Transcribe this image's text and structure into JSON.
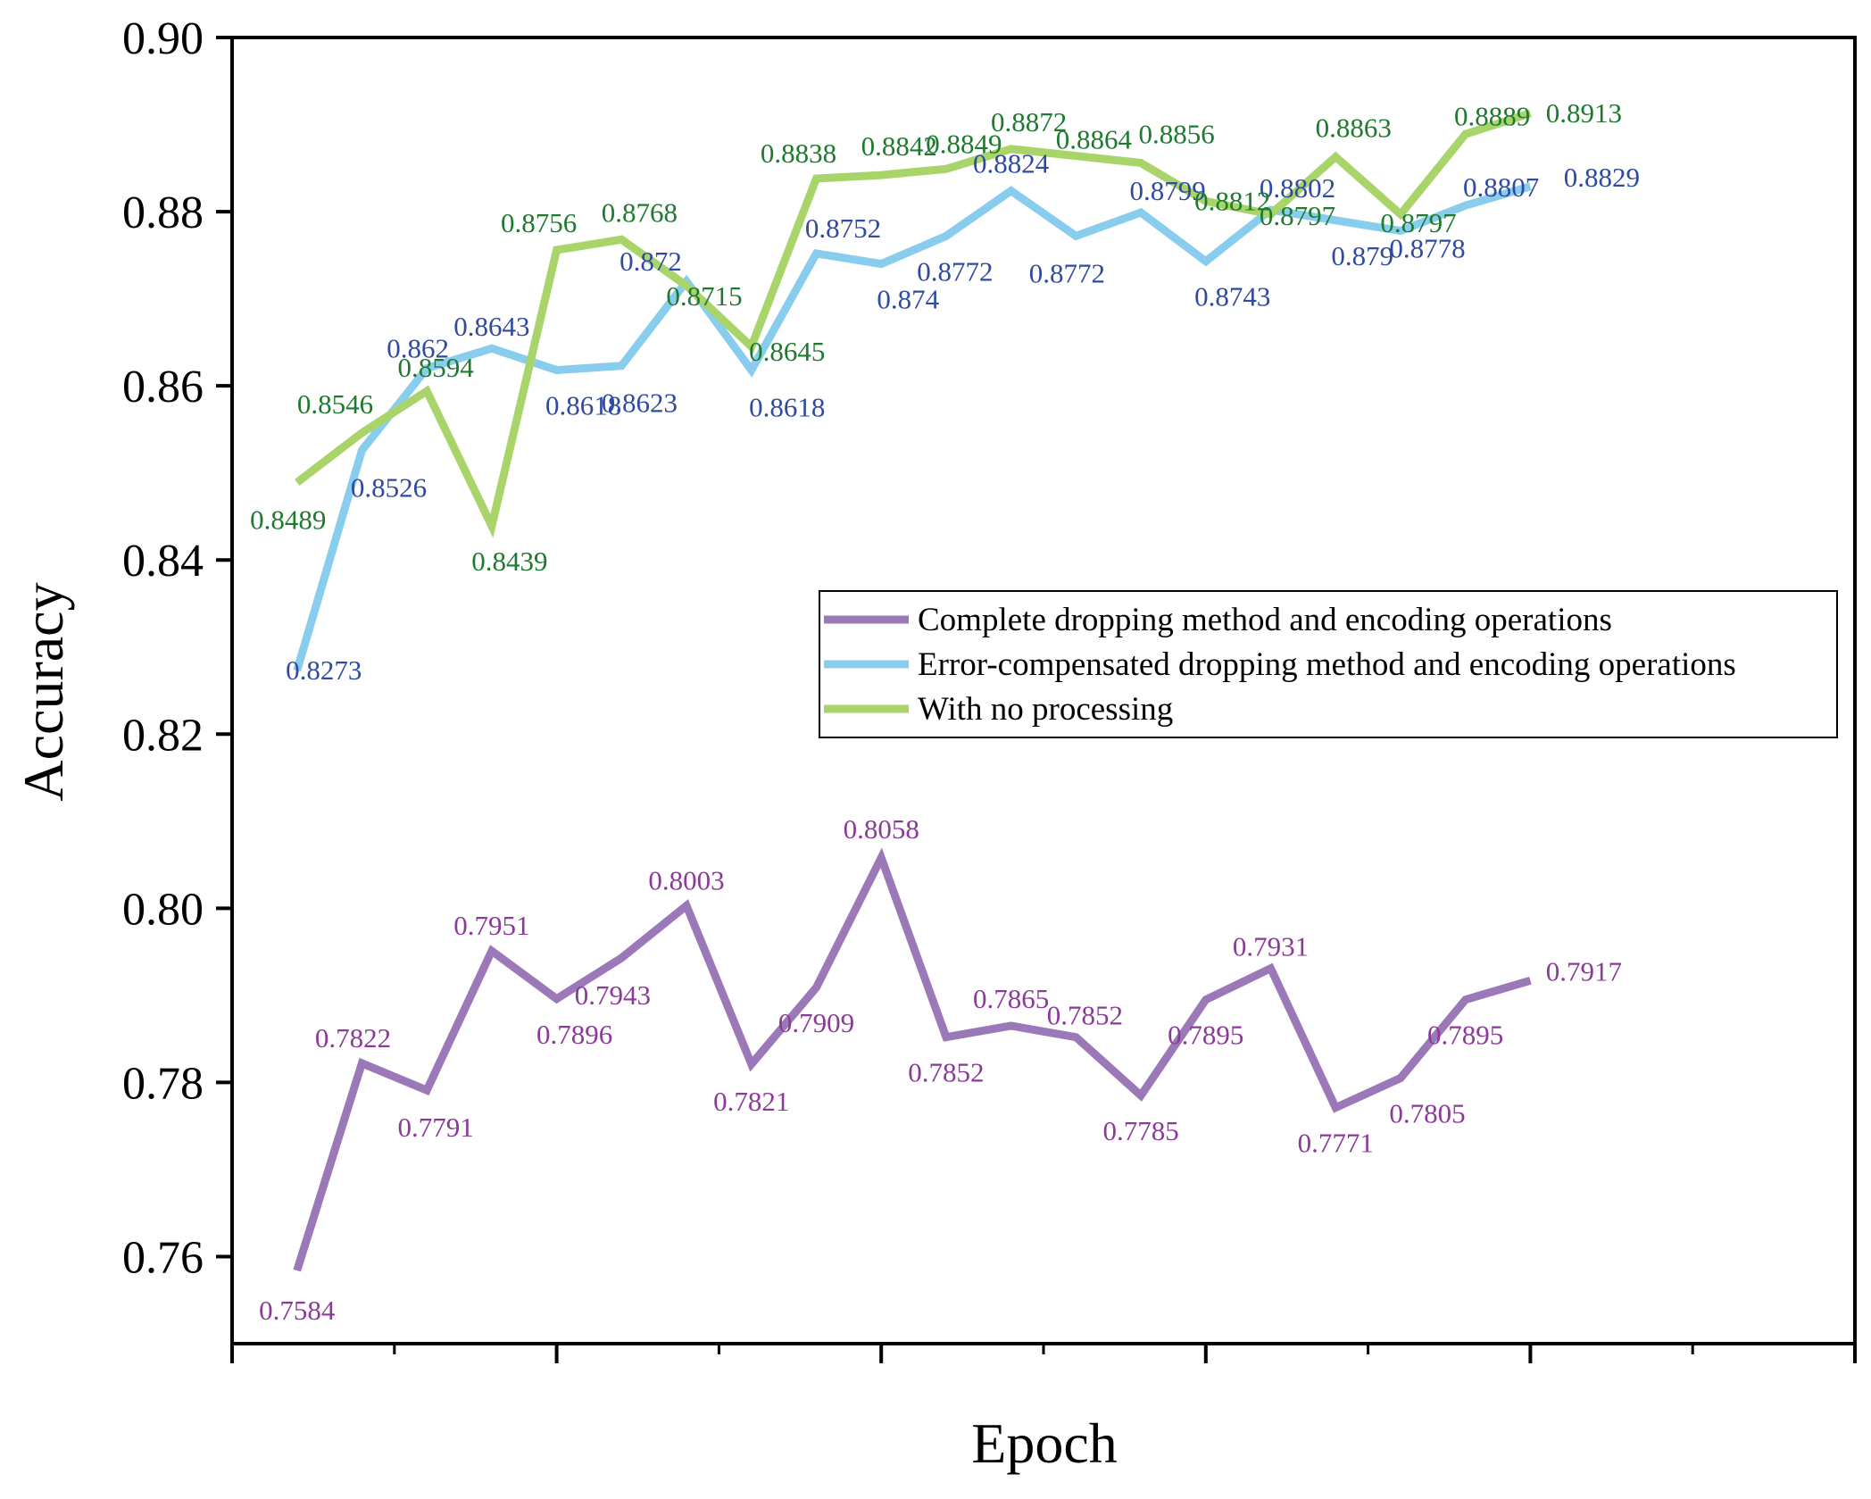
{
  "chart_data": {
    "type": "line",
    "title": "",
    "xlabel": "Epoch",
    "ylabel": "Accuracy",
    "ylim": [
      0.75,
      0.9
    ],
    "xlim": [
      0,
      25
    ],
    "yticks": [
      "0.76",
      "0.78",
      "0.80",
      "0.82",
      "0.84",
      "0.86",
      "0.88",
      "0.90"
    ],
    "ytick_values": [
      0.76,
      0.78,
      0.8,
      0.82,
      0.84,
      0.86,
      0.88,
      0.9
    ],
    "x": [
      1,
      2,
      3,
      4,
      5,
      6,
      7,
      8,
      9,
      10,
      11,
      12,
      13,
      14,
      15,
      16,
      17,
      18,
      19,
      20
    ],
    "legend_position": "center-right",
    "series": [
      {
        "name": "Complete dropping method and encoding operations",
        "color": "#9b78b8",
        "label_color": "#8b3a9a",
        "values": [
          0.7584,
          0.7822,
          0.7791,
          0.7951,
          0.7896,
          0.7943,
          0.8003,
          0.7821,
          0.7909,
          0.8058,
          0.7852,
          0.7865,
          0.7852,
          0.7785,
          0.7895,
          0.7931,
          0.7771,
          0.7805,
          0.7895,
          0.7917
        ],
        "labels": [
          "0.7584",
          "0.7822",
          "0.7791",
          "0.7951",
          "0.7896",
          "0.7943",
          "0.8003",
          "0.7821",
          "0.7909",
          "0.8058",
          "0.7852",
          "0.7865",
          "0.7852",
          "0.7785",
          "0.7895",
          "0.7931",
          "0.7771",
          "0.7805",
          "0.7895",
          "0.7917"
        ]
      },
      {
        "name": "Error-compensated dropping method and encoding operations",
        "color": "#88cdee",
        "label_color": "#2f4aa0",
        "values": [
          0.8273,
          0.8526,
          0.862,
          0.8643,
          0.8618,
          0.8623,
          0.872,
          0.8618,
          0.8752,
          0.874,
          0.8772,
          0.8824,
          0.8772,
          0.8799,
          0.8743,
          0.8802,
          0.879,
          0.8778,
          0.8807,
          0.8829
        ],
        "labels": [
          "0.8273",
          "0.8526",
          "0.862",
          "0.8643",
          "0.8618",
          "0.8623",
          "0.872",
          "0.8618",
          "0.8752",
          "0.874",
          "0.8772",
          "0.8824",
          "0.8772",
          "0.8799",
          "0.8743",
          "0.8802",
          "0.879",
          "0.8778",
          "0.8807",
          "0.8829"
        ]
      },
      {
        "name": "With no processing",
        "color": "#a9d46a",
        "label_color": "#1e7a2e",
        "values": [
          0.8489,
          0.8546,
          0.8594,
          0.8439,
          0.8756,
          0.8768,
          0.8715,
          0.8645,
          0.8838,
          0.8842,
          0.8849,
          0.8872,
          0.8864,
          0.8856,
          0.8812,
          0.8797,
          0.8863,
          0.8797,
          0.8889,
          0.8913
        ],
        "labels": [
          "0.8489",
          "0.8546",
          "0.8594",
          "0.8439",
          "0.8756",
          "0.8768",
          "0.8715",
          "0.8645",
          "0.8838",
          "0.8842",
          "0.8849",
          "0.8872",
          "0.8864",
          "0.8856",
          "0.8812",
          "0.8797",
          "0.8863",
          "0.8797",
          "0.8889",
          "0.8913"
        ]
      }
    ]
  }
}
